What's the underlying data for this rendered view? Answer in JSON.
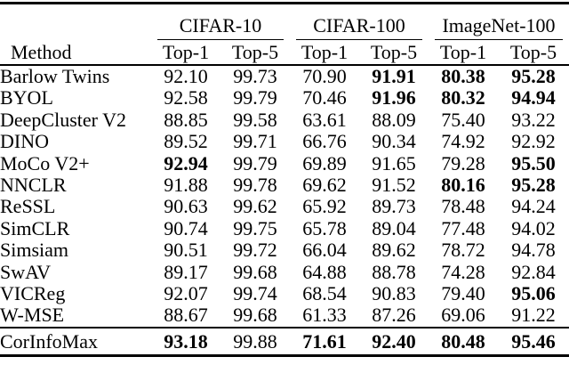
{
  "colors": {
    "text": "#000000",
    "background": "#ffffff",
    "rule": "#000000"
  },
  "table": {
    "method_header": "Method",
    "groups": [
      {
        "label": "CIFAR-10"
      },
      {
        "label": "CIFAR-100"
      },
      {
        "label": "ImageNet-100"
      }
    ],
    "subheaders": [
      "Top-1",
      "Top-5",
      "Top-1",
      "Top-5",
      "Top-1",
      "Top-5"
    ],
    "rows": [
      {
        "method": "Barlow Twins",
        "values": [
          "92.10",
          "99.73",
          "70.90",
          "91.91",
          "80.38",
          "95.28"
        ],
        "bold": [
          false,
          false,
          false,
          true,
          true,
          true
        ]
      },
      {
        "method": "BYOL",
        "values": [
          "92.58",
          "99.79",
          "70.46",
          "91.96",
          "80.32",
          "94.94"
        ],
        "bold": [
          false,
          false,
          false,
          true,
          true,
          true
        ]
      },
      {
        "method": "DeepCluster V2",
        "values": [
          "88.85",
          "99.58",
          "63.61",
          "88.09",
          "75.40",
          "93.22"
        ],
        "bold": [
          false,
          false,
          false,
          false,
          false,
          false
        ]
      },
      {
        "method": "DINO",
        "values": [
          "89.52",
          "99.71",
          "66.76",
          "90.34",
          "74.92",
          "92.92"
        ],
        "bold": [
          false,
          false,
          false,
          false,
          false,
          false
        ]
      },
      {
        "method": "MoCo V2+",
        "values": [
          "92.94",
          "99.79",
          "69.89",
          "91.65",
          "79.28",
          "95.50"
        ],
        "bold": [
          true,
          false,
          false,
          false,
          false,
          true
        ]
      },
      {
        "method": "NNCLR",
        "values": [
          "91.88",
          "99.78",
          "69.62",
          "91.52",
          "80.16",
          "95.28"
        ],
        "bold": [
          false,
          false,
          false,
          false,
          true,
          true
        ]
      },
      {
        "method": "ReSSL",
        "values": [
          "90.63",
          "99.62",
          "65.92",
          "89.73",
          "78.48",
          "94.24"
        ],
        "bold": [
          false,
          false,
          false,
          false,
          false,
          false
        ]
      },
      {
        "method": "SimCLR",
        "values": [
          "90.74",
          "99.75",
          "65.78",
          "89.04",
          "77.48",
          "94.02"
        ],
        "bold": [
          false,
          false,
          false,
          false,
          false,
          false
        ]
      },
      {
        "method": "Simsiam",
        "values": [
          "90.51",
          "99.72",
          "66.04",
          "89.62",
          "78.72",
          "94.78"
        ],
        "bold": [
          false,
          false,
          false,
          false,
          false,
          false
        ]
      },
      {
        "method": "SwAV",
        "values": [
          "89.17",
          "99.68",
          "64.88",
          "88.78",
          "74.28",
          "92.84"
        ],
        "bold": [
          false,
          false,
          false,
          false,
          false,
          false
        ]
      },
      {
        "method": "VICReg",
        "values": [
          "92.07",
          "99.74",
          "68.54",
          "90.83",
          "79.40",
          "95.06"
        ],
        "bold": [
          false,
          false,
          false,
          false,
          false,
          true
        ]
      },
      {
        "method": "W-MSE",
        "values": [
          "88.67",
          "99.68",
          "61.33",
          "87.26",
          "69.06",
          "91.22"
        ],
        "bold": [
          false,
          false,
          false,
          false,
          false,
          false
        ]
      }
    ],
    "footer_row": {
      "method": "CorInfoMax",
      "values": [
        "93.18",
        "99.88",
        "71.61",
        "92.40",
        "80.48",
        "95.46"
      ],
      "bold": [
        true,
        false,
        true,
        true,
        true,
        true
      ]
    }
  }
}
